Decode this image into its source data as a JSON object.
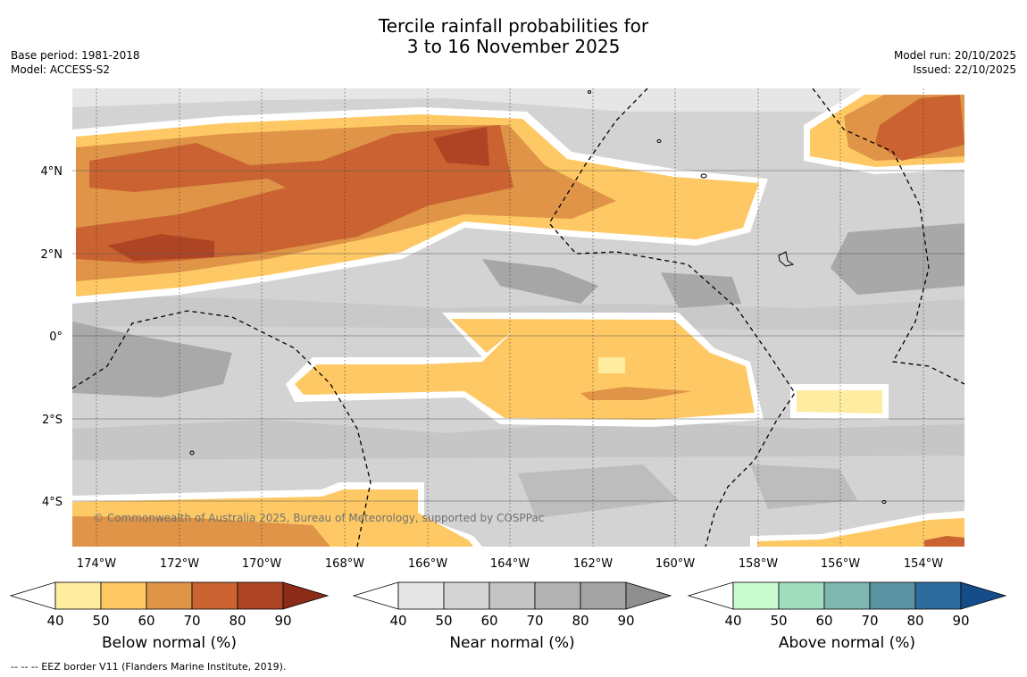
{
  "title": {
    "line1": "Tercile rainfall probabilities for",
    "line2": "3 to 16 November 2025"
  },
  "meta_left": {
    "base_period": "Base period: 1981-2018",
    "model": "Model: ACCESS-S2"
  },
  "meta_right": {
    "model_run": "Model run: 20/10/2025",
    "issued": "Issued: 22/10/2025"
  },
  "map": {
    "lon_labels": [
      "174°W",
      "172°W",
      "170°W",
      "168°W",
      "166°W",
      "164°W",
      "162°W",
      "160°W",
      "158°W",
      "156°W",
      "154°W"
    ],
    "lat_labels": [
      "4°N",
      "2°N",
      "0°",
      "2°S",
      "4°S"
    ],
    "copyright": "© Commonwealth of Australia 2025, Bureau of Meteorology, supported by COSPPac"
  },
  "colorbars": [
    {
      "name": "below",
      "label": "Below normal (%)",
      "ticks": [
        "40",
        "50",
        "60",
        "70",
        "80",
        "90"
      ],
      "colors": [
        "#ffffff",
        "#feeca0",
        "#fec965",
        "#e09447",
        "#ca6331",
        "#ad4424",
        "#8c2b17"
      ]
    },
    {
      "name": "near",
      "label": "Near normal (%)",
      "ticks": [
        "40",
        "50",
        "60",
        "70",
        "80",
        "90"
      ],
      "colors": [
        "#ffffff",
        "#e6e6e6",
        "#d5d5d5",
        "#c4c4c4",
        "#b2b2b2",
        "#a3a3a3",
        "#8f8f8f"
      ]
    },
    {
      "name": "above",
      "label": "Above normal (%)",
      "ticks": [
        "40",
        "50",
        "60",
        "70",
        "80",
        "90"
      ],
      "colors": [
        "#ffffff",
        "#c8fcd0",
        "#a0dcbe",
        "#7fb7b0",
        "#5b92a2",
        "#2e6ca0",
        "#154d8a"
      ]
    }
  ],
  "footnote": "--  --  -- EEZ border V11 (Flanders Marine Institute, 2019)."
}
